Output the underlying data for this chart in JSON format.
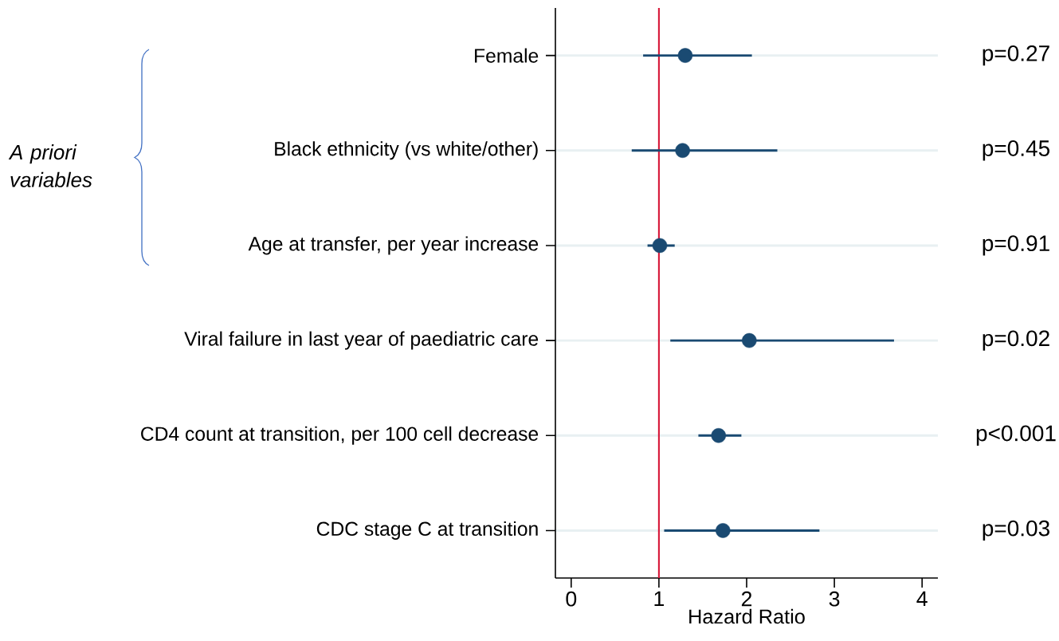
{
  "chart_data": {
    "type": "scatter",
    "orientation": "horizontal",
    "xlabel": "Hazard Ratio",
    "categories": [
      "Female",
      "Black ethnicity (vs white/other)",
      "Age at transfer, per year increase",
      "Viral failure in last year of paediatric care",
      "CD4 count at transition, per 100 cell decrease",
      "CDC stage C at transition"
    ],
    "values": [
      1.3,
      1.27,
      1.01,
      2.03,
      1.68,
      1.73
    ],
    "errors": [
      [
        0.82,
        2.06
      ],
      [
        0.69,
        2.35
      ],
      [
        0.87,
        1.18
      ],
      [
        1.13,
        3.68
      ],
      [
        1.45,
        1.94
      ],
      [
        1.06,
        2.83
      ]
    ],
    "color": "#1a4a72",
    "marker": "circle",
    "grid": "y",
    "xlim": [
      -0.18,
      4.18
    ],
    "xticks": [
      0,
      1,
      2,
      3,
      4
    ],
    "ref_lines": [
      {
        "axis": "x",
        "value": 1,
        "color": "#d7193a"
      }
    ],
    "annotations": [
      "p=0.27",
      "p=0.45",
      "p=0.91",
      "p=0.02",
      "p<0.001",
      "p=0.03",
      "*A priori variables*"
    ]
  }
}
